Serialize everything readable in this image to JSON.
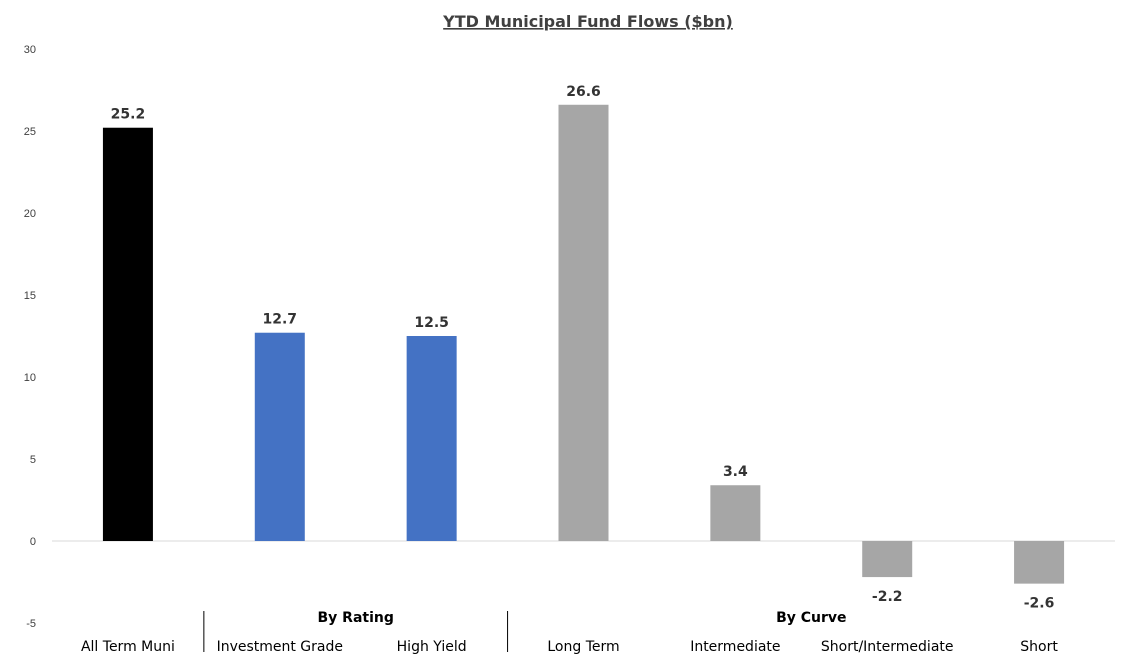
{
  "chart_data": {
    "type": "bar",
    "title": "YTD Municipal Fund Flows ($bn)",
    "xlabel": "",
    "ylabel": "",
    "ylim": [
      -5,
      30
    ],
    "yticks": [
      -5,
      0,
      5,
      10,
      15,
      20,
      25,
      30
    ],
    "grid": false,
    "legend": "none",
    "categories": [
      "All Term Muni",
      "Investment Grade",
      "High Yield",
      "Long Term",
      "Intermediate",
      "Short/Intermediate",
      "Short"
    ],
    "values": [
      25.2,
      12.7,
      12.5,
      26.6,
      3.4,
      -2.2,
      -2.6
    ],
    "data_labels": [
      "25.2",
      "12.7",
      "12.5",
      "26.6",
      "3.4",
      "-2.2",
      "-2.6"
    ],
    "bar_colors": [
      "#000000",
      "#4472c4",
      "#4472c4",
      "#a6a6a6",
      "#a6a6a6",
      "#a6a6a6",
      "#a6a6a6"
    ],
    "groups": [
      {
        "label": "By Rating",
        "categories": [
          "Investment Grade",
          "High Yield"
        ]
      },
      {
        "label": "By Curve",
        "categories": [
          "Long Term",
          "Intermediate",
          "Short/Intermediate",
          "Short"
        ]
      }
    ]
  }
}
